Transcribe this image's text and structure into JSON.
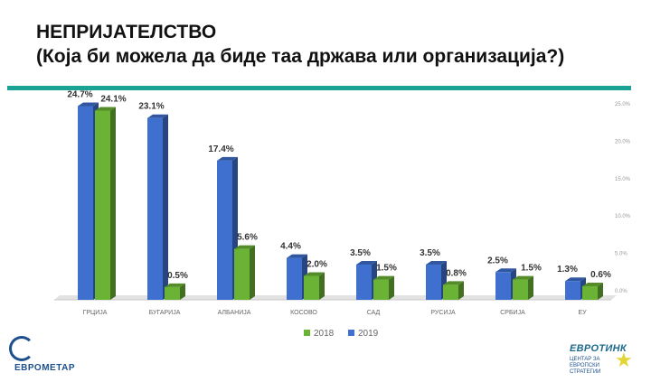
{
  "header": {
    "title_line1": "НЕПРИЈАТЕЛСТВО",
    "title_line2": "(Која би можела да биде таа држава или организација?)"
  },
  "colors": {
    "s2018": "#6ab335",
    "s2019": "#3f6fcf",
    "accent": "#1aa394"
  },
  "chart_data": {
    "type": "bar",
    "categories": [
      "ГРЦИЈА",
      "БУГАРИЈА",
      "АЛБАНИЈА",
      "КОСОВО",
      "САД",
      "РУСИЈА",
      "СРБИЈА",
      "ЕУ"
    ],
    "series": [
      {
        "name": "2019",
        "values": [
          24.7,
          23.1,
          17.4,
          4.4,
          3.5,
          3.5,
          2.5,
          1.3
        ]
      },
      {
        "name": "2018",
        "values": [
          24.1,
          0.5,
          5.6,
          2.0,
          1.5,
          0.8,
          1.5,
          0.6
        ]
      }
    ],
    "labels": {
      "2019": [
        "24.7%",
        "23.1%",
        "17.4%",
        "4.4%",
        "3.5%",
        "3.5%",
        "2.5%",
        "1.3%"
      ],
      "2018": [
        "24.1%",
        "0.5%",
        "5.6%",
        "2.0%",
        "1.5%",
        "0.8%",
        "1.5%",
        "0.6%"
      ]
    },
    "y_ticks": [
      "0.0%",
      "5.0%",
      "10.0%",
      "15.0%",
      "20.0%",
      "25.0%"
    ],
    "ylim": [
      0,
      25
    ],
    "legend": [
      "2018",
      "2019"
    ],
    "legend_position": "bottom"
  },
  "logos": {
    "left_name": "ЕВРОМЕТАР",
    "right_name": "ЕВРОТИНК",
    "right_sub": "ЦЕНТАР ЗА ЕВРОПСКИ СТРАТЕГИИ"
  }
}
